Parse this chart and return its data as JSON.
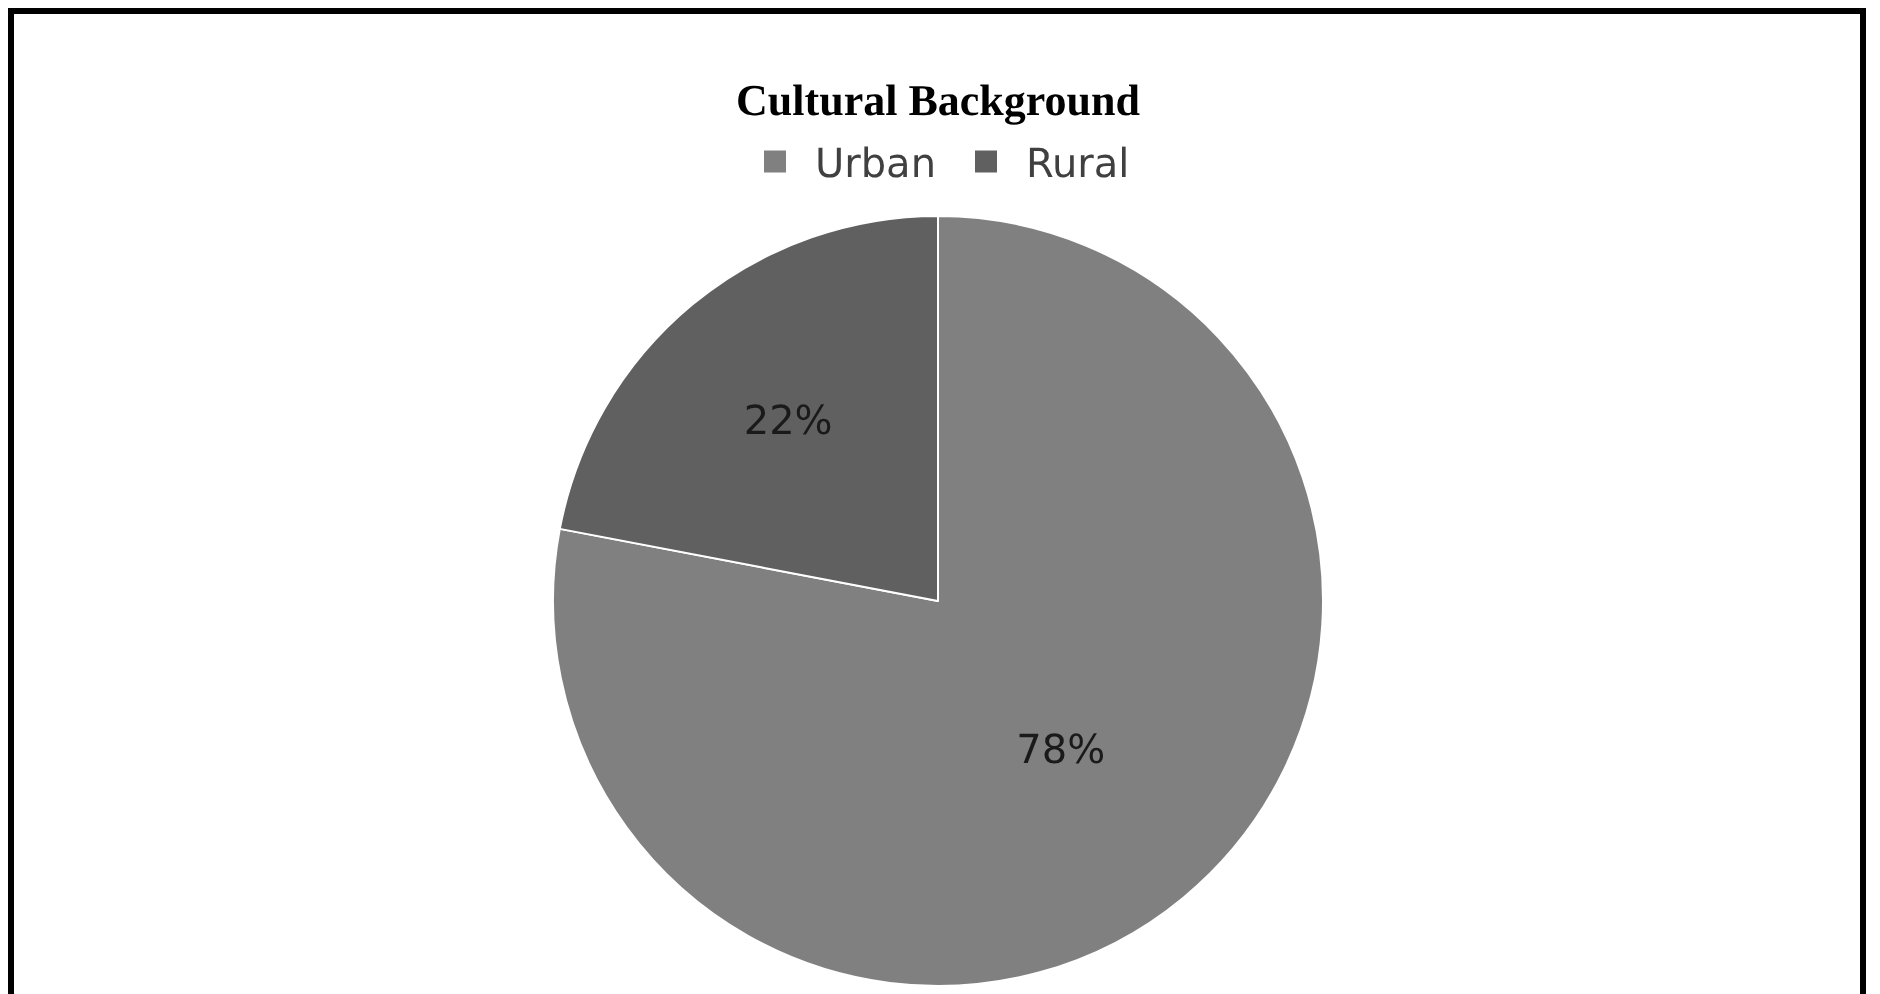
{
  "chart_data": {
    "type": "pie",
    "title": "Cultural Background",
    "categories": [
      "Urban",
      "Rural"
    ],
    "values": [
      78,
      22
    ],
    "value_labels": [
      "78%",
      "22%"
    ],
    "colors": [
      "#808080",
      "#606060"
    ],
    "legend": "top"
  }
}
